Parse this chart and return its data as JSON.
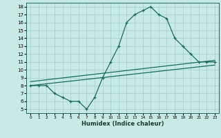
{
  "xlabel": "Humidex (Indice chaleur)",
  "bg_color": "#c8eae4",
  "grid_color": "#9fccc4",
  "line_color": "#1a6b5a",
  "xlim": [
    -0.5,
    23.5
  ],
  "ylim": [
    4.5,
    18.5
  ],
  "xticks": [
    0,
    1,
    2,
    3,
    4,
    5,
    6,
    7,
    8,
    9,
    10,
    11,
    12,
    13,
    14,
    15,
    16,
    17,
    18,
    19,
    20,
    21,
    22,
    23
  ],
  "yticks": [
    5,
    6,
    7,
    8,
    9,
    10,
    11,
    12,
    13,
    14,
    15,
    16,
    17,
    18
  ],
  "line1_x": [
    0,
    1,
    2,
    3,
    4,
    5,
    6,
    7,
    8,
    9,
    10,
    11,
    12,
    13,
    14,
    15,
    16,
    17,
    18,
    19,
    20,
    21,
    22,
    23
  ],
  "line1_y": [
    8,
    8,
    8,
    7,
    6.5,
    6,
    6,
    5,
    6.5,
    9,
    11,
    13,
    16,
    17,
    17.5,
    18,
    17,
    16.5,
    14,
    13,
    12,
    11,
    11,
    11
  ],
  "line2_x": [
    0,
    23
  ],
  "line2_y": [
    8.5,
    11.2
  ],
  "line3_x": [
    0,
    23
  ],
  "line3_y": [
    8.0,
    10.6
  ]
}
